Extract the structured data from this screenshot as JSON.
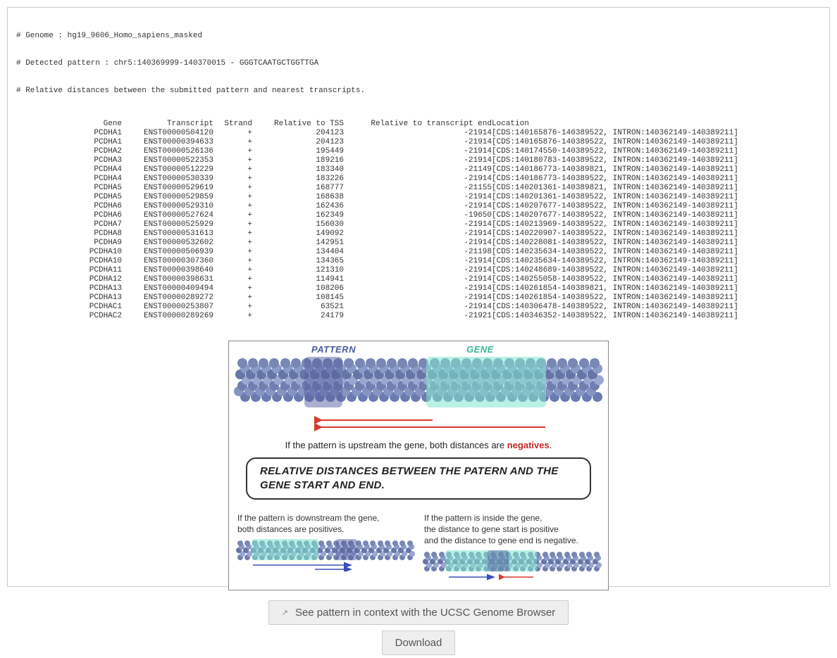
{
  "header": {
    "line1": "# Genome : hg19_9606_Homo_sapiens_masked",
    "line2": "# Detected pattern : chr5:140369999-140370015 - GGGTCAATGCTGGTTGA",
    "line3": "# Relative distances between the submitted pattern and nearest transcripts."
  },
  "columns": {
    "gene": "Gene",
    "transcript": "Transcript",
    "strand": "Strand",
    "tss": "Relative to TSS",
    "tend": "Relative to transcript end",
    "loc": "Location"
  },
  "rows": [
    {
      "gene": "PCDHA1",
      "transcript": "ENST00000504120",
      "strand": "+",
      "tss": "204123",
      "tend": "-21914",
      "loc": "[CDS:140165876-140389522, INTRON:140362149-140389211]"
    },
    {
      "gene": "PCDHA1",
      "transcript": "ENST00000394633",
      "strand": "+",
      "tss": "204123",
      "tend": "-21914",
      "loc": "[CDS:140165876-140389522, INTRON:140362149-140389211]"
    },
    {
      "gene": "PCDHA2",
      "transcript": "ENST00000526136",
      "strand": "+",
      "tss": "195449",
      "tend": "-21914",
      "loc": "[CDS:140174550-140389522, INTRON:140362149-140389211]"
    },
    {
      "gene": "PCDHA3",
      "transcript": "ENST00000522353",
      "strand": "+",
      "tss": "189216",
      "tend": "-21914",
      "loc": "[CDS:140180783-140389522, INTRON:140362149-140389211]"
    },
    {
      "gene": "PCDHA4",
      "transcript": "ENST00000512229",
      "strand": "+",
      "tss": "183340",
      "tend": "-21149",
      "loc": "[CDS:140186773-140389821, INTRON:140362149-140389211]"
    },
    {
      "gene": "PCDHA4",
      "transcript": "ENST00000530339",
      "strand": "+",
      "tss": "183226",
      "tend": "-21914",
      "loc": "[CDS:140186773-140389522, INTRON:140362149-140389211]"
    },
    {
      "gene": "PCDHA5",
      "transcript": "ENST00000529619",
      "strand": "+",
      "tss": "168777",
      "tend": "-21155",
      "loc": "[CDS:140201361-140389821, INTRON:140362149-140389211]"
    },
    {
      "gene": "PCDHA5",
      "transcript": "ENST00000529859",
      "strand": "+",
      "tss": "168638",
      "tend": "-21914",
      "loc": "[CDS:140201361-140389522, INTRON:140362149-140389211]"
    },
    {
      "gene": "PCDHA6",
      "transcript": "ENST00000529310",
      "strand": "+",
      "tss": "162436",
      "tend": "-21914",
      "loc": "[CDS:140207677-140389522, INTRON:140362149-140389211]"
    },
    {
      "gene": "PCDHA6",
      "transcript": "ENST00000527624",
      "strand": "+",
      "tss": "162349",
      "tend": "-19650",
      "loc": "[CDS:140207677-140389522, INTRON:140362149-140389211]"
    },
    {
      "gene": "PCDHA7",
      "transcript": "ENST00000525929",
      "strand": "+",
      "tss": "156030",
      "tend": "-21914",
      "loc": "[CDS:140213969-140389522, INTRON:140362149-140389211]"
    },
    {
      "gene": "PCDHA8",
      "transcript": "ENST00000531613",
      "strand": "+",
      "tss": "149092",
      "tend": "-21914",
      "loc": "[CDS:140220907-140389522, INTRON:140362149-140389211]"
    },
    {
      "gene": "PCDHA9",
      "transcript": "ENST00000532602",
      "strand": "+",
      "tss": "142951",
      "tend": "-21914",
      "loc": "[CDS:140228081-140389522, INTRON:140362149-140389211]"
    },
    {
      "gene": "PCDHA10",
      "transcript": "ENST00000506939",
      "strand": "+",
      "tss": "134404",
      "tend": "-21198",
      "loc": "[CDS:140235634-140389522, INTRON:140362149-140389211]"
    },
    {
      "gene": "PCDHA10",
      "transcript": "ENST00000307360",
      "strand": "+",
      "tss": "134365",
      "tend": "-21914",
      "loc": "[CDS:140235634-140389522, INTRON:140362149-140389211]"
    },
    {
      "gene": "PCDHA11",
      "transcript": "ENST00000398640",
      "strand": "+",
      "tss": "121310",
      "tend": "-21914",
      "loc": "[CDS:140248689-140389522, INTRON:140362149-140389211]"
    },
    {
      "gene": "PCDHA12",
      "transcript": "ENST00000398631",
      "strand": "+",
      "tss": "114941",
      "tend": "-21914",
      "loc": "[CDS:140255058-140389522, INTRON:140362149-140389211]"
    },
    {
      "gene": "PCDHA13",
      "transcript": "ENST00000409494",
      "strand": "+",
      "tss": "108206",
      "tend": "-21914",
      "loc": "[CDS:140261854-140389821, INTRON:140362149-140389211]"
    },
    {
      "gene": "PCDHA13",
      "transcript": "ENST00000289272",
      "strand": "+",
      "tss": "108145",
      "tend": "-21914",
      "loc": "[CDS:140261854-140389522, INTRON:140362149-140389211]"
    },
    {
      "gene": "PCDHAC1",
      "transcript": "ENST00000253807",
      "strand": "+",
      "tss": "63521",
      "tend": "-21914",
      "loc": "[CDS:140306478-140389522, INTRON:140362149-140389211]"
    },
    {
      "gene": "PCDHAC2",
      "transcript": "ENST00000289269",
      "strand": "+",
      "tss": "24179",
      "tend": "-21921",
      "loc": "[CDS:140346352-140389522, INTRON:140362149-140389211]"
    }
  ],
  "diagram": {
    "pattern_label": "PATTERN",
    "gene_label": "GENE",
    "upstream_text_pre": "If the pattern is upstream the gene, both distances are ",
    "upstream_text_key": "negatives",
    "upstream_text_post": ".",
    "title": "RELATIVE DISTANCES BETWEEN THE PATERN AND THE GENE START AND END.",
    "downstream_text_pre": "If the pattern is downstream the gene,\nboth distances are ",
    "downstream_text_key": "positives",
    "downstream_text_post": ".",
    "inside_text_line1": "If the pattern is inside the gene,",
    "inside_text_line2a": "the distance to gene start is ",
    "inside_text_pos": "positive",
    "inside_text_line3a": "and the distance to gene end is ",
    "inside_text_neg": "negative",
    "inside_text_period": "."
  },
  "actions": {
    "ucsc": "See pattern in context with the UCSC Genome Browser",
    "download": "Download"
  },
  "colors": {
    "border": "#cccccc",
    "text": "#333333",
    "pattern_overlay": "rgba(86,95,160,0.5)",
    "gene_overlay": "rgba(127,230,205,0.55)",
    "dna_blob": "#7887b4",
    "neg": "#c62828",
    "pos": "#1a3fd4",
    "arrow_red": "#d83a2c",
    "arrow_blue": "#3a4fb8",
    "button_bg": "#eeeeee"
  }
}
